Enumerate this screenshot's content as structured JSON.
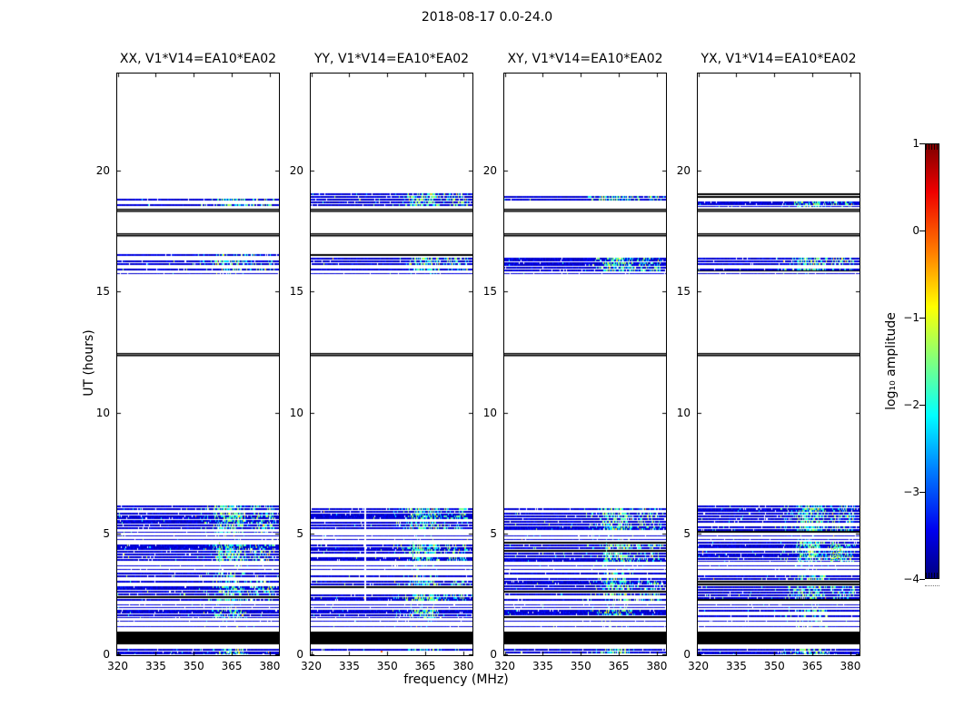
{
  "figure": {
    "title": "2018-08-17 0.0-24.0",
    "xlabel": "frequency (MHz)",
    "ylabel": "UT (hours)",
    "colorbar_label": "log₁₀ amplitude"
  },
  "chart_data": {
    "type": "heatmap",
    "description": "Four dynamic-spectrum (frequency vs UT) panels of interferometer visibility amplitudes for baseline V1*V14=EA10*EA02 on 2018-08-17, hours 0.0-24.0, with a jet colorbar of log10 amplitude.",
    "panels": [
      {
        "title": "XX, V1*V14=EA10*EA02",
        "seed": 3
      },
      {
        "title": "YY, V1*V14=EA10*EA02",
        "seed": 7
      },
      {
        "title": "XY, V1*V14=EA10*EA02",
        "seed": 13
      },
      {
        "title": "YX, V1*V14=EA10*EA02",
        "seed": 29
      }
    ],
    "x_axis": {
      "label": "frequency (MHz)",
      "range": [
        319.8,
        383.6
      ],
      "ticks": [
        320,
        335,
        350,
        365,
        380
      ]
    },
    "y_axis": {
      "label": "UT (hours)",
      "range": [
        0,
        24
      ],
      "ticks": [
        0,
        5,
        10,
        15,
        20
      ]
    },
    "colorbar": {
      "label": "log10 amplitude",
      "range": [
        -4,
        1
      ],
      "ticks": [
        1,
        0,
        -1,
        -2,
        -3,
        -4
      ],
      "tick_labels": [
        "1",
        "0",
        "−1",
        "−2",
        "−3",
        "−4"
      ],
      "colormap": "jet"
    },
    "speckle": {
      "primary": [
        357.5,
        371.5
      ],
      "secondary": [
        372.0,
        381.8
      ],
      "weak": [
        352.5,
        357.5
      ]
    },
    "time_bands": [
      {
        "t0": 18.5,
        "t1": 19.06,
        "style": "stripes",
        "density": 0.78,
        "sp": 1.0,
        "wide": true
      },
      {
        "t0": 18.32,
        "t1": 18.46,
        "style": "lines_black",
        "rows": 2
      },
      {
        "t0": 17.25,
        "t1": 17.43,
        "style": "lines_black",
        "rows": 2
      },
      {
        "t0": 16.44,
        "t1": 16.56,
        "style": "stripes",
        "density": 0.55,
        "sp": 0.7,
        "wide": true
      },
      {
        "t0": 15.82,
        "t1": 16.4,
        "style": "stripes",
        "density": 0.82,
        "sp": 1.0,
        "wide": true
      },
      {
        "t0": 15.7,
        "t1": 15.8,
        "style": "lines_blue",
        "rows": 1
      },
      {
        "t0": 12.33,
        "t1": 12.52,
        "style": "lines_black",
        "rows": 2
      },
      {
        "t0": 5.04,
        "t1": 6.18,
        "style": "stripes",
        "density": 0.82,
        "sp": 1.0,
        "wide": true
      },
      {
        "t0": 4.72,
        "t1": 4.98,
        "style": "lines_blue",
        "rows": 2
      },
      {
        "t0": 3.85,
        "t1": 4.68,
        "style": "stripes",
        "density": 0.86,
        "sp": 1.0,
        "wide": true
      },
      {
        "t0": 3.45,
        "t1": 3.78,
        "style": "lines_blue",
        "rows": 2
      },
      {
        "t0": 3.1,
        "t1": 3.42,
        "style": "stripes",
        "density": 0.55,
        "sp": 0.8,
        "wide": false
      },
      {
        "t0": 2.2,
        "t1": 3.06,
        "style": "stripes",
        "density": 0.9,
        "sp": 1.0,
        "wide": true
      },
      {
        "t0": 1.92,
        "t1": 2.14,
        "style": "lines_blue",
        "rows": 2
      },
      {
        "t0": 1.55,
        "t1": 1.88,
        "style": "stripes",
        "density": 0.8,
        "sp": 0.9,
        "wide": false
      },
      {
        "t0": 1.05,
        "t1": 1.5,
        "style": "lines_blue",
        "rows": 2
      },
      {
        "t0": 0.45,
        "t1": 0.98,
        "style": "black"
      },
      {
        "t0": 0.02,
        "t1": 0.28,
        "style": "stripes",
        "density": 0.9,
        "sp": 1.0,
        "wide": false
      }
    ],
    "features": [
      {
        "type": "bright_vline",
        "freq": 359.8,
        "t0": 3.85,
        "t1": 4.68,
        "panels": [
          1,
          2,
          3,
          4
        ]
      },
      {
        "type": "white_vline",
        "freq": 340.8,
        "t0": 2.2,
        "t1": 6.18,
        "panels": [
          2
        ]
      },
      {
        "type": "bright_patch",
        "f0": 372.0,
        "f1": 376.5,
        "t0": 3.9,
        "t1": 4.62,
        "panels": [
          4
        ]
      },
      {
        "type": "hot_dot",
        "freq": 347.5,
        "t": 0.15,
        "panels": [
          2
        ]
      }
    ]
  }
}
